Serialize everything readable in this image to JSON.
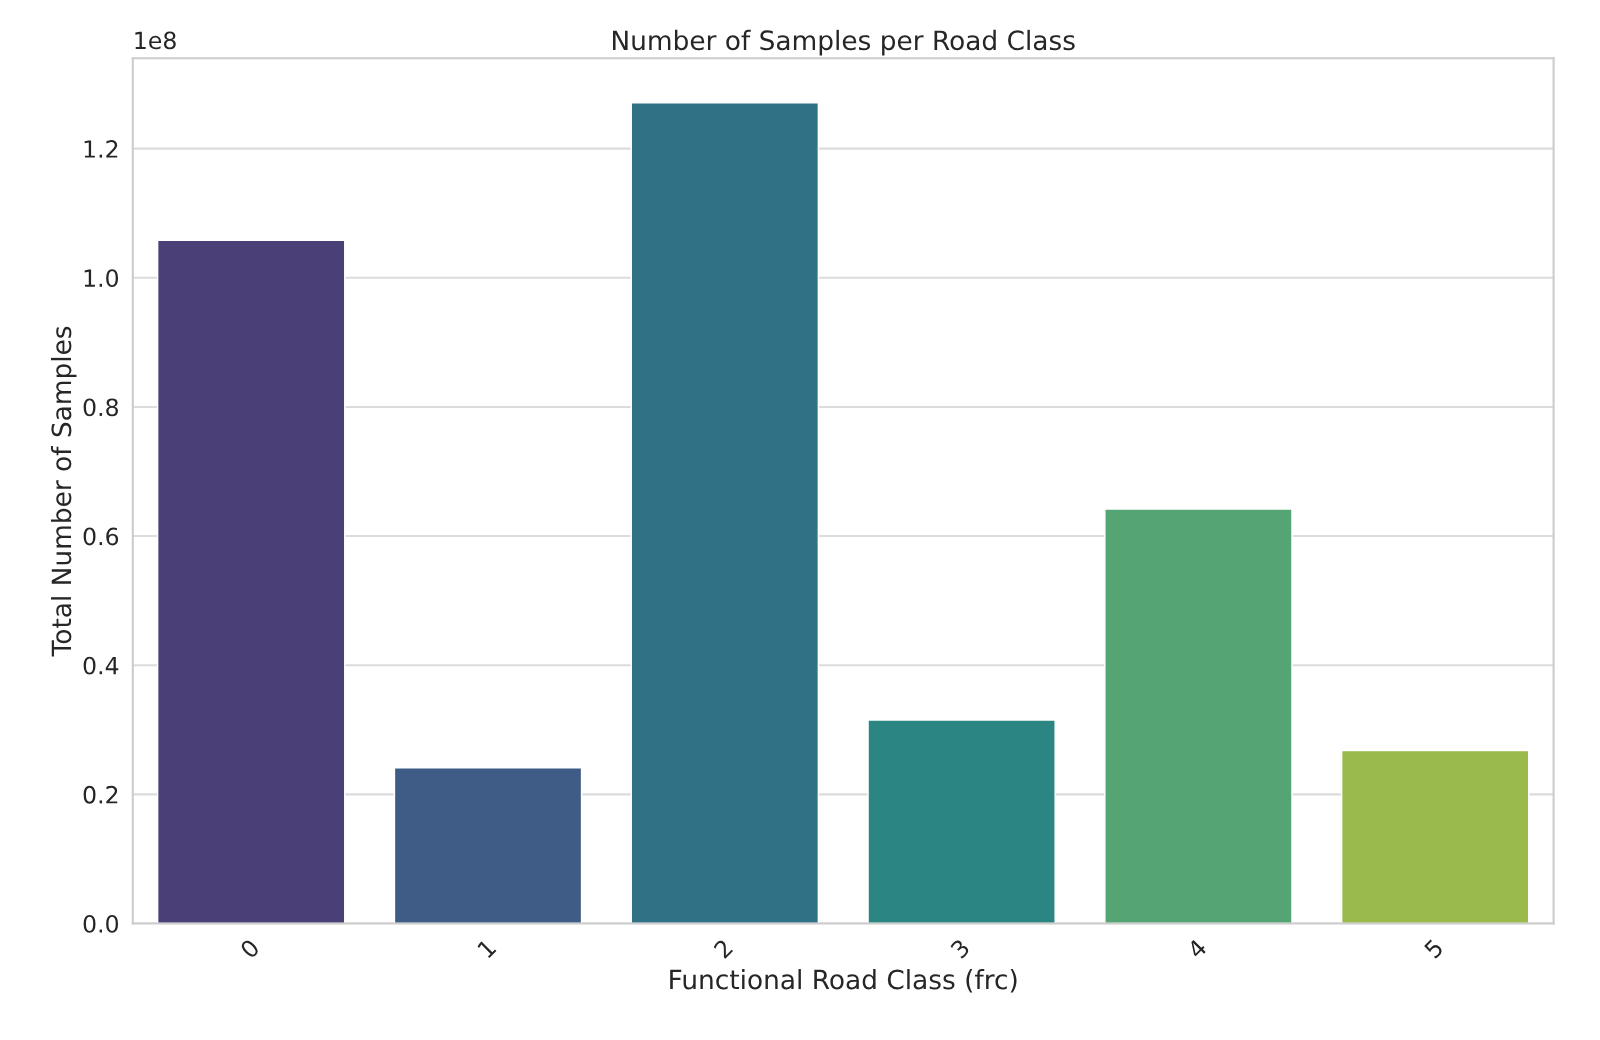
{
  "chart_data": {
    "type": "bar",
    "title": "Number of Samples per Road Class",
    "xlabel": "Functional Road Class (frc)",
    "ylabel": "Total Number of Samples",
    "categories": [
      "0",
      "1",
      "2",
      "3",
      "4",
      "5"
    ],
    "values": [
      1.058,
      0.241,
      1.271,
      0.315,
      0.642,
      0.268
    ],
    "colors": [
      "#4a3f76",
      "#3e5c86",
      "#307186",
      "#2b8683",
      "#55a574",
      "#9aba4c"
    ],
    "ylim": [
      0,
      1.34
    ],
    "yticks": [
      {
        "value": 0,
        "label": "0.0"
      },
      0.2,
      0.4,
      0.6,
      0.8,
      {
        "value": 1,
        "label": "1.0"
      },
      1.2
    ],
    "annotations": [
      "1e8"
    ],
    "grid": "y"
  }
}
